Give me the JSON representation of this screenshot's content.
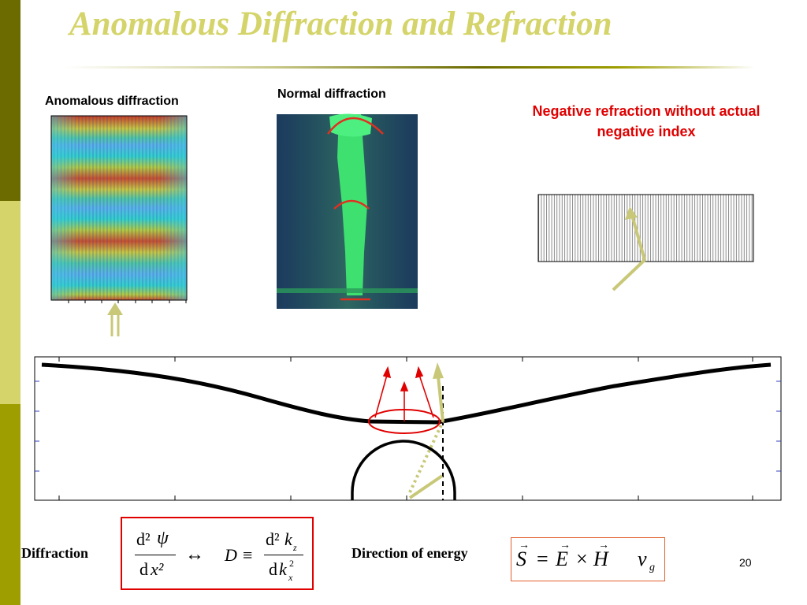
{
  "slide": {
    "title": "Anomalous Diffraction and Refraction",
    "page_number": "20"
  },
  "panels": {
    "anomalous_label": "Anomalous diffraction",
    "normal_label": "Normal diffraction",
    "negative_refraction_caption": "Negative refraction without actual negative index"
  },
  "equations": {
    "diffraction_label": "Diffraction",
    "energy_label": "Direction of energy",
    "d": "d",
    "d2": "d²",
    "psi": "ψ",
    "x2": "x²",
    "arrow": "↔",
    "D": "D",
    "equiv": "≡",
    "kz": "k",
    "kz_sub": "z",
    "kx": "k",
    "kx_sub": "x",
    "kx_sup": "2",
    "S": "S",
    "eq": "=",
    "E": "E",
    "times": "×",
    "H": "H",
    "v": "v",
    "g": "g"
  },
  "colors": {
    "sidebar_dark": "#6b6b00",
    "sidebar_light": "#d4d46a",
    "sidebar_mid": "#9e9e00",
    "title": "#d4d46a",
    "accent_red": "#e00000",
    "arrow_olive": "#c8c878"
  }
}
